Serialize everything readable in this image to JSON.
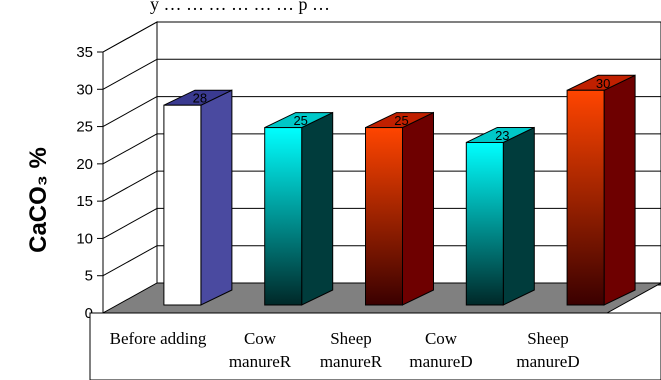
{
  "top_text": "y … … … … … … p …",
  "chart_data": {
    "type": "bar",
    "categories": [
      [
        "Before adding"
      ],
      [
        "Cow",
        "manureR"
      ],
      [
        "Sheep",
        "manureR"
      ],
      [
        "Cow",
        "manureD"
      ],
      [
        "Sheep",
        "manureD"
      ]
    ],
    "values": [
      28,
      25,
      25,
      23,
      30
    ],
    "data_labels": [
      "28",
      "25",
      "25",
      "23",
      "30"
    ],
    "ylabel": "CaCO₃ %",
    "ylim": [
      0,
      35
    ],
    "yticks": [
      0,
      5,
      10,
      15,
      20,
      25,
      30,
      35
    ],
    "grid": true,
    "colors": [
      {
        "front": "#ffffff",
        "side": "#4a4aa0",
        "top": "#3a3a90"
      },
      {
        "front_top": "#00ffff",
        "front_bottom": "#002828",
        "side": "#003c3c",
        "top": "#00c8c8"
      },
      {
        "front_top": "#ff4500",
        "front_bottom": "#3a0000",
        "side": "#6e0000",
        "top": "#c02000"
      },
      {
        "front_top": "#00ffff",
        "front_bottom": "#002828",
        "side": "#003c3c",
        "top": "#00c8c8"
      },
      {
        "front_top": "#ff4500",
        "front_bottom": "#3a0000",
        "side": "#6e0000",
        "top": "#c02000"
      }
    ],
    "floor_color": "#808080"
  }
}
